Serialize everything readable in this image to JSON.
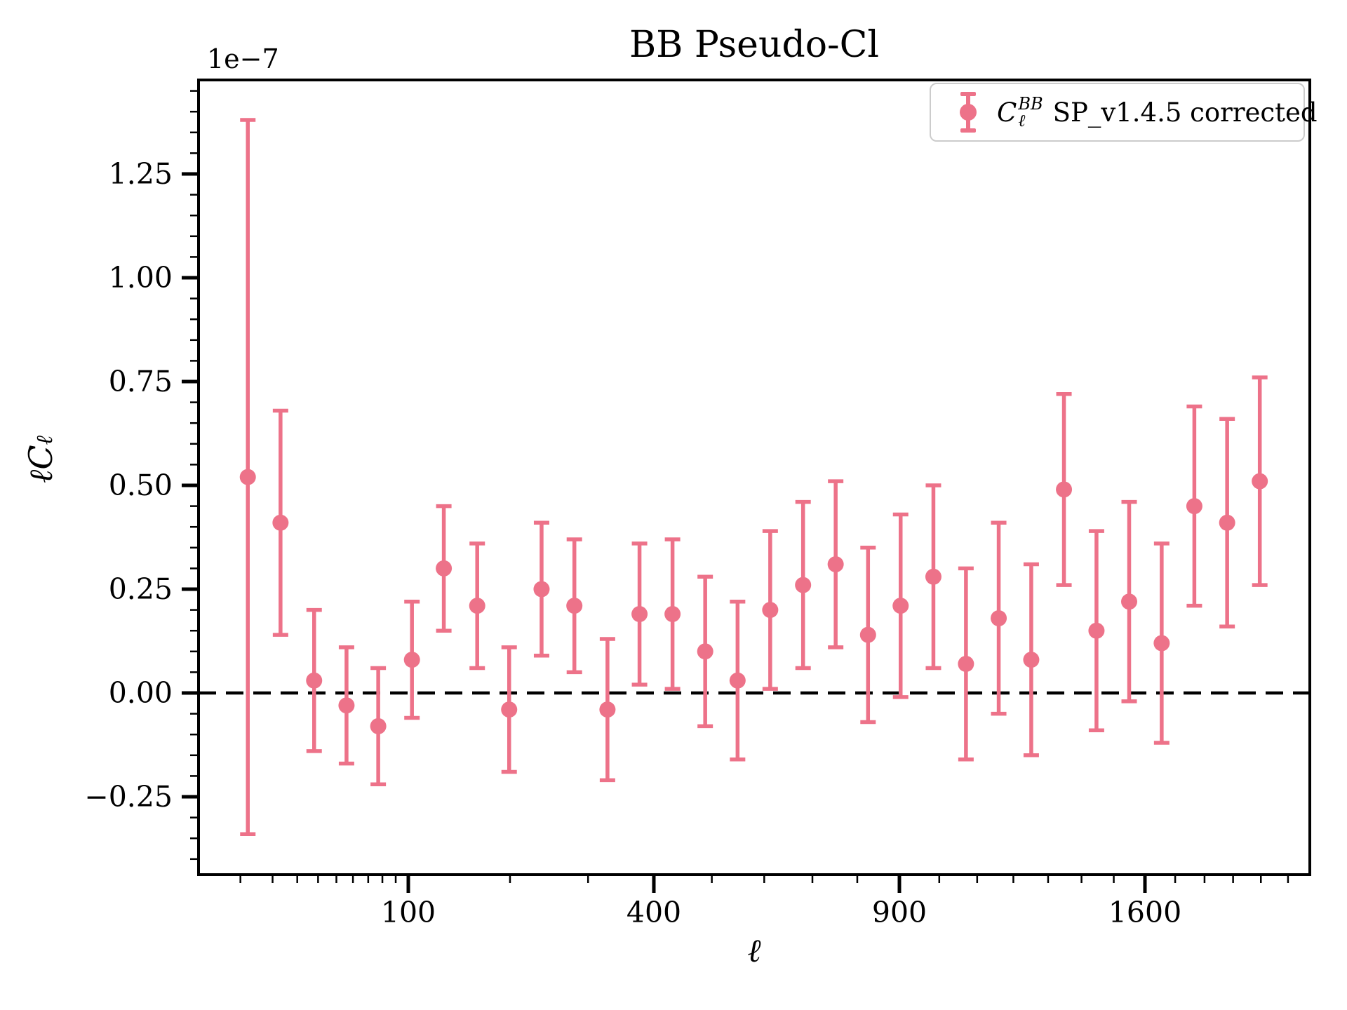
{
  "figure": {
    "legend": {
      "sym": "C",
      "sup": "BB",
      "sub": "ℓ",
      "rest": "SP_v1.4.5 corrected"
    },
    "ylabel_parts": {
      "prefix": "ℓC",
      "sub": "ℓ"
    },
    "offset_label": "1e−7",
    "colors": {
      "series": "#ED7289",
      "axis": "#000000",
      "zero_line": "#000000",
      "legend_border": "#cccccc"
    }
  },
  "chart_data": {
    "type": "scatter",
    "title": "BB Pseudo-Cl",
    "xlabel": "ℓ",
    "ylabel": "ℓCℓ",
    "y_offset_factor": "1e−7",
    "x_scale": "sqrt",
    "xlim": [
      2.1,
      2185
    ],
    "ylim": [
      -0.4375,
      1.476
    ],
    "grid": false,
    "zero_line_dashed": true,
    "legend_position": "upper right",
    "legend_entries": [
      "C_ℓ^BB SP_v1.4.5 corrected"
    ],
    "x_ticks_major": [
      100,
      400,
      900,
      1600
    ],
    "x_ticks_minor": [
      10,
      20,
      30,
      40,
      50,
      60,
      70,
      80,
      90,
      200,
      300,
      500,
      600,
      700,
      800,
      1000,
      1100,
      1200,
      1300,
      1400,
      1500,
      1700,
      1800,
      1900,
      2000,
      2100
    ],
    "y_ticks_major": [
      -0.25,
      0.0,
      0.25,
      0.5,
      0.75,
      1.0,
      1.25
    ],
    "y_minor_step": 0.05,
    "series": [
      {
        "name": "C_ℓ^BB SP_v1.4.5 corrected",
        "x": [
          12,
          23,
          38,
          56,
          77,
          103,
          131,
          164,
          199,
          238,
          281,
          328,
          377,
          431,
          488,
          548,
          612,
          680,
          751,
          825,
          903,
          985,
          1070,
          1159,
          1251,
          1347,
          1446,
          1549,
          1655,
          1765,
          1879,
          1996
        ],
        "y": [
          0.52,
          0.41,
          0.03,
          -0.03,
          -0.08,
          0.08,
          0.3,
          0.21,
          -0.04,
          0.25,
          0.21,
          -0.04,
          0.19,
          0.19,
          0.1,
          0.03,
          0.2,
          0.26,
          0.31,
          0.14,
          0.21,
          0.28,
          0.07,
          0.18,
          0.08,
          0.49,
          0.15,
          0.22,
          0.12,
          0.45,
          0.41,
          0.51
        ],
        "yerr": [
          0.86,
          0.27,
          0.17,
          0.14,
          0.14,
          0.14,
          0.15,
          0.15,
          0.15,
          0.16,
          0.16,
          0.17,
          0.17,
          0.18,
          0.18,
          0.19,
          0.19,
          0.2,
          0.2,
          0.21,
          0.22,
          0.22,
          0.23,
          0.23,
          0.23,
          0.23,
          0.24,
          0.24,
          0.24,
          0.24,
          0.25,
          0.25
        ],
        "units": "1e−7"
      }
    ]
  }
}
